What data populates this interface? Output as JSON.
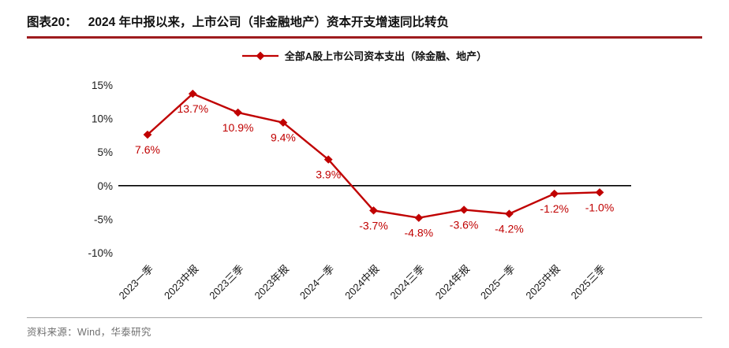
{
  "header": {
    "figure_label": "图表20：",
    "title": "2024 年中报以来，上市公司（非金融地产）资本开支增速同比转负"
  },
  "legend": {
    "label": "全部A股上市公司资本支出（除金融、地产）"
  },
  "chart_data": {
    "type": "line",
    "title": "全部A股上市公司资本支出（除金融、地产）",
    "categories": [
      "2023一季",
      "2023中报",
      "2023三季",
      "2023年报",
      "2024一季",
      "2024中报",
      "2024三季",
      "2024年报",
      "2025一季",
      "2025中报",
      "2025三季"
    ],
    "series": [
      {
        "name": "全部A股上市公司资本支出（除金融、地产）",
        "values": [
          7.6,
          13.7,
          10.9,
          9.4,
          3.9,
          -3.7,
          -4.8,
          -3.6,
          -4.2,
          -1.2,
          -1.0
        ],
        "data_labels": [
          "7.6%",
          "13.7%",
          "10.9%",
          "9.4%",
          "3.9%",
          "-3.7%",
          "-4.8%",
          "-3.6%",
          "-4.2%",
          "-1.2%",
          "-1.0%"
        ]
      }
    ],
    "ylim": [
      -10,
      15
    ],
    "yticks": [
      15,
      10,
      5,
      0,
      -5,
      -10
    ],
    "ytick_labels": [
      "15%",
      "10%",
      "5%",
      "0%",
      "-5%",
      "-10%"
    ],
    "grid": false,
    "legend_position": "top",
    "marker": "diamond"
  },
  "colors": {
    "line": "#C00000",
    "data_label": "#C00000",
    "title_rule": "#9E1B1E",
    "axis": "#000000",
    "tick_text": "#1a1a1a",
    "footer_line": "#A6A6A6",
    "footer_text": "#6F6F6F"
  },
  "footer": {
    "source": "资料来源：Wind，华泰研究"
  }
}
